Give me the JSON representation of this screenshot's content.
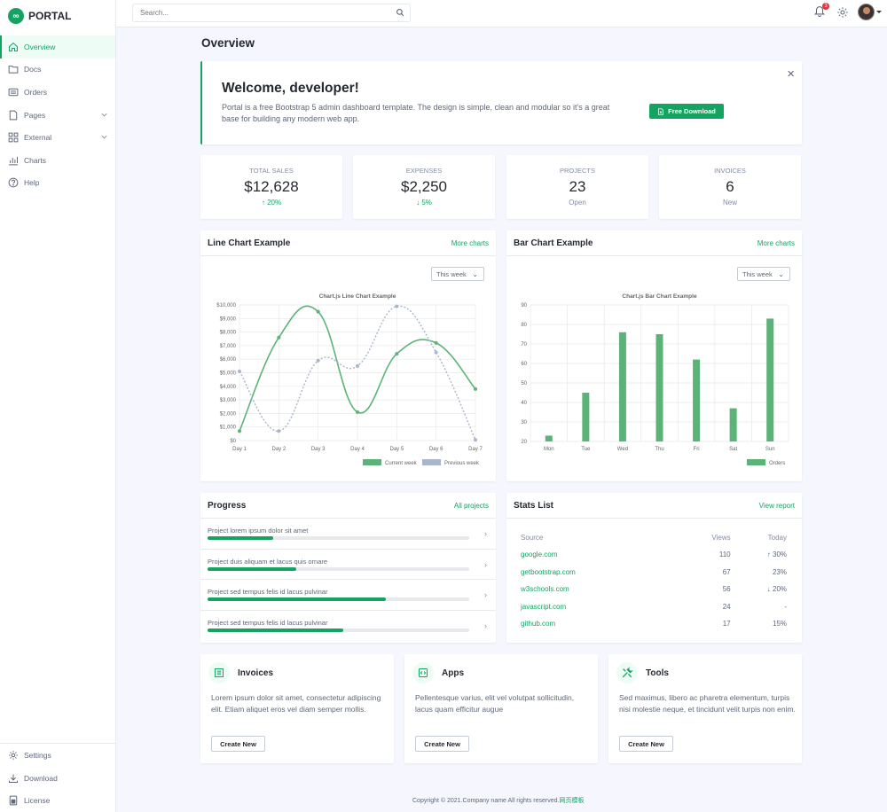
{
  "brand": {
    "name": "PORTAL",
    "logo": "∞"
  },
  "sidebar": {
    "items": [
      {
        "label": "Overview",
        "icon": "home-icon",
        "active": true
      },
      {
        "label": "Docs",
        "icon": "folder-icon"
      },
      {
        "label": "Orders",
        "icon": "card-icon"
      },
      {
        "label": "Pages",
        "icon": "file-icon",
        "chevron": true
      },
      {
        "label": "External",
        "icon": "grid-icon",
        "chevron": true
      },
      {
        "label": "Charts",
        "icon": "bar-chart-icon"
      },
      {
        "label": "Help",
        "icon": "question-icon"
      }
    ],
    "footer": [
      {
        "label": "Settings",
        "icon": "gear-icon"
      },
      {
        "label": "Download",
        "icon": "download-icon"
      },
      {
        "label": "License",
        "icon": "license-icon"
      }
    ]
  },
  "header": {
    "search_placeholder": "Search...",
    "notification_count": "3"
  },
  "page_title": "Overview",
  "welcome": {
    "title": "Welcome, developer!",
    "text": "Portal is a free Bootstrap 5 admin dashboard template. The design is simple, clean and modular so it's a great base for building any modern web app.",
    "button": "Free Download",
    "close": "×"
  },
  "stats": [
    {
      "label": "Total Sales",
      "value": "$12,628",
      "sub": "↑ 20%"
    },
    {
      "label": "Expenses",
      "value": "$2,250",
      "sub": "↓ 5%"
    },
    {
      "label": "Projects",
      "value": "23",
      "sub": "Open"
    },
    {
      "label": "Invoices",
      "value": "6",
      "sub": "New"
    }
  ],
  "line_panel": {
    "title": "Line Chart Example",
    "link": "More charts",
    "dropdown": "This week"
  },
  "bar_panel": {
    "title": "Bar Chart Example",
    "link": "More charts",
    "dropdown": "This week"
  },
  "chart_data": [
    {
      "type": "line",
      "title": "Chart.js Line Chart Example",
      "categories": [
        "Day 1",
        "Day 2",
        "Day 3",
        "Day 4",
        "Day 5",
        "Day 6",
        "Day 7"
      ],
      "y_ticks": [
        "$0",
        "$1,000",
        "$2,000",
        "$3,000",
        "$4,000",
        "$5,000",
        "$6,000",
        "$7,000",
        "$8,000",
        "$9,000",
        "$10,000"
      ],
      "ylim": [
        0,
        10000
      ],
      "series": [
        {
          "name": "Current week",
          "values": [
            700,
            7600,
            9500,
            2100,
            6400,
            7200,
            3800
          ],
          "color": "#5cb377",
          "dashed": false
        },
        {
          "name": "Previous week",
          "values": [
            5100,
            700,
            5900,
            5500,
            9900,
            6500,
            50
          ],
          "color": "#a9b5c9",
          "dashed": true
        }
      ],
      "legend": "bottom-right",
      "grid": true
    },
    {
      "type": "bar",
      "title": "Chart.js Bar Chart Example",
      "categories": [
        "Mon",
        "Tue",
        "Wed",
        "Thu",
        "Fri",
        "Sat",
        "Sun"
      ],
      "y_ticks": [
        "20",
        "30",
        "40",
        "50",
        "60",
        "70",
        "80",
        "90"
      ],
      "ylim": [
        20,
        90
      ],
      "series": [
        {
          "name": "Orders",
          "values": [
            23,
            45,
            76,
            75,
            62,
            37,
            83
          ],
          "color": "#5cb377"
        }
      ],
      "legend": "bottom-right",
      "grid": true
    }
  ],
  "progress": {
    "title": "Progress",
    "link": "All projects",
    "items": [
      {
        "label": "Project lorem ipsum dolor sit amet",
        "percent": 25
      },
      {
        "label": "Project duis aliquam et lacus quis ornare",
        "percent": 34
      },
      {
        "label": "Project sed tempus felis id lacus pulvinar",
        "percent": 68
      },
      {
        "label": "Project sed tempus felis id lacus pulvinar",
        "percent": 52
      }
    ]
  },
  "stats_list": {
    "title": "Stats List",
    "link": "View report",
    "columns": [
      "Source",
      "Views",
      "Today"
    ],
    "rows": [
      {
        "source": "google.com",
        "views": "110",
        "today": "↑ 30%"
      },
      {
        "source": "getbootstrap.com",
        "views": "67",
        "today": "23%"
      },
      {
        "source": "w3schools.com",
        "views": "56",
        "today": "↓ 20%"
      },
      {
        "source": "javascript.com",
        "views": "24",
        "today": "-"
      },
      {
        "source": "github.com",
        "views": "17",
        "today": "15%"
      }
    ]
  },
  "features": [
    {
      "title": "Invoices",
      "icon": "receipt-icon",
      "text": "Lorem ipsum dolor sit amet, consectetur adipiscing elit. Etiam aliquet eros vel diam semper mollis.",
      "button": "Create New"
    },
    {
      "title": "Apps",
      "icon": "code-icon",
      "text": "Pellentesque varius, elit vel volutpat sollicitudin, lacus quam efficitur augue",
      "button": "Create New"
    },
    {
      "title": "Tools",
      "icon": "tools-icon",
      "text": "Sed maximus, libero ac pharetra elementum, turpis nisi molestie neque, et tincidunt velit turpis non enim.",
      "button": "Create New"
    }
  ],
  "footer": {
    "text": "Copyright © 2021.Company name All rights reserved.",
    "link": "网页模板"
  },
  "colors": {
    "accent": "#15a362",
    "chart_green": "#5cb377",
    "chart_grey": "#a9b5c9",
    "badge": "#dc3545"
  }
}
